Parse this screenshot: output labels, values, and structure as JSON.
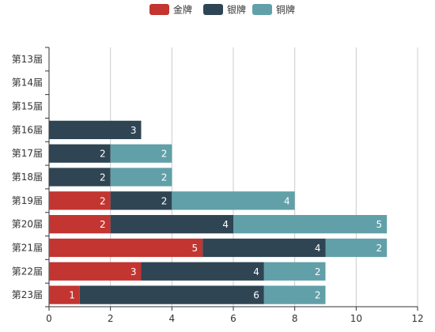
{
  "chart_data": {
    "type": "bar",
    "orientation": "horizontal",
    "stacked": true,
    "categories": [
      "第13届",
      "第14届",
      "第15届",
      "第16届",
      "第17届",
      "第18届",
      "第19届",
      "第20届",
      "第21届",
      "第22届",
      "第23届"
    ],
    "series": [
      {
        "name": "金牌",
        "color": "#c23531",
        "values": [
          0,
          0,
          0,
          0,
          0,
          0,
          2,
          2,
          5,
          3,
          1
        ]
      },
      {
        "name": "银牌",
        "color": "#2f4554",
        "values": [
          0,
          0,
          0,
          3,
          2,
          2,
          2,
          4,
          4,
          4,
          6
        ]
      },
      {
        "name": "铜牌",
        "color": "#61a0a8",
        "values": [
          0,
          0,
          0,
          0,
          2,
          2,
          4,
          5,
          2,
          2,
          2
        ]
      }
    ],
    "xlim": [
      0,
      12
    ],
    "xticks": [
      "0",
      "2",
      "4",
      "6",
      "8",
      "10",
      "12"
    ],
    "grid": "vertical",
    "legend_position": "top-center",
    "data_labels": "inside"
  }
}
